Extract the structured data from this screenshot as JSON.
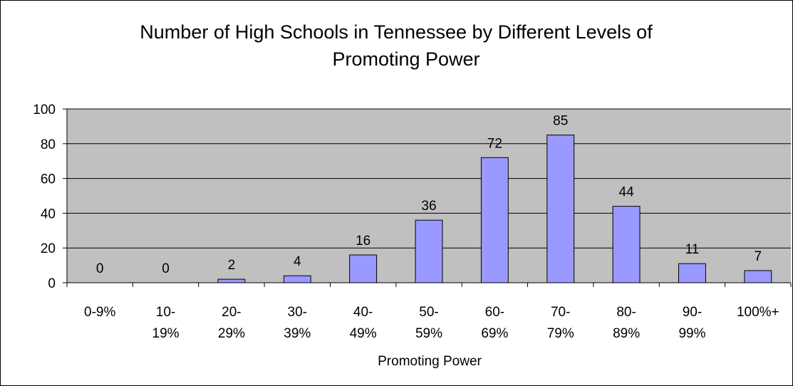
{
  "chart_data": {
    "type": "bar",
    "title_lines": [
      "Number of High Schools in Tennessee by Different Levels of",
      "Promoting Power"
    ],
    "xlabel": "Promoting Power",
    "ylabel": "",
    "categories": [
      [
        "0-9%"
      ],
      [
        "10-",
        "19%"
      ],
      [
        "20-",
        "29%"
      ],
      [
        "30-",
        "39%"
      ],
      [
        "40-",
        "49%"
      ],
      [
        "50-",
        "59%"
      ],
      [
        "60-",
        "69%"
      ],
      [
        "70-",
        "79%"
      ],
      [
        "80-",
        "89%"
      ],
      [
        "90-",
        "99%"
      ],
      [
        "100%+"
      ]
    ],
    "values": [
      0,
      0,
      2,
      4,
      16,
      36,
      72,
      85,
      44,
      11,
      7
    ],
    "ylim": [
      0,
      100
    ],
    "yticks": [
      0,
      20,
      40,
      60,
      80,
      100
    ],
    "grid": true,
    "legend": "none",
    "colors": {
      "bar_fill": "#9999FF",
      "bar_stroke": "#000000",
      "plot_bg": "#C0C0C0",
      "grid": "#000000"
    }
  }
}
